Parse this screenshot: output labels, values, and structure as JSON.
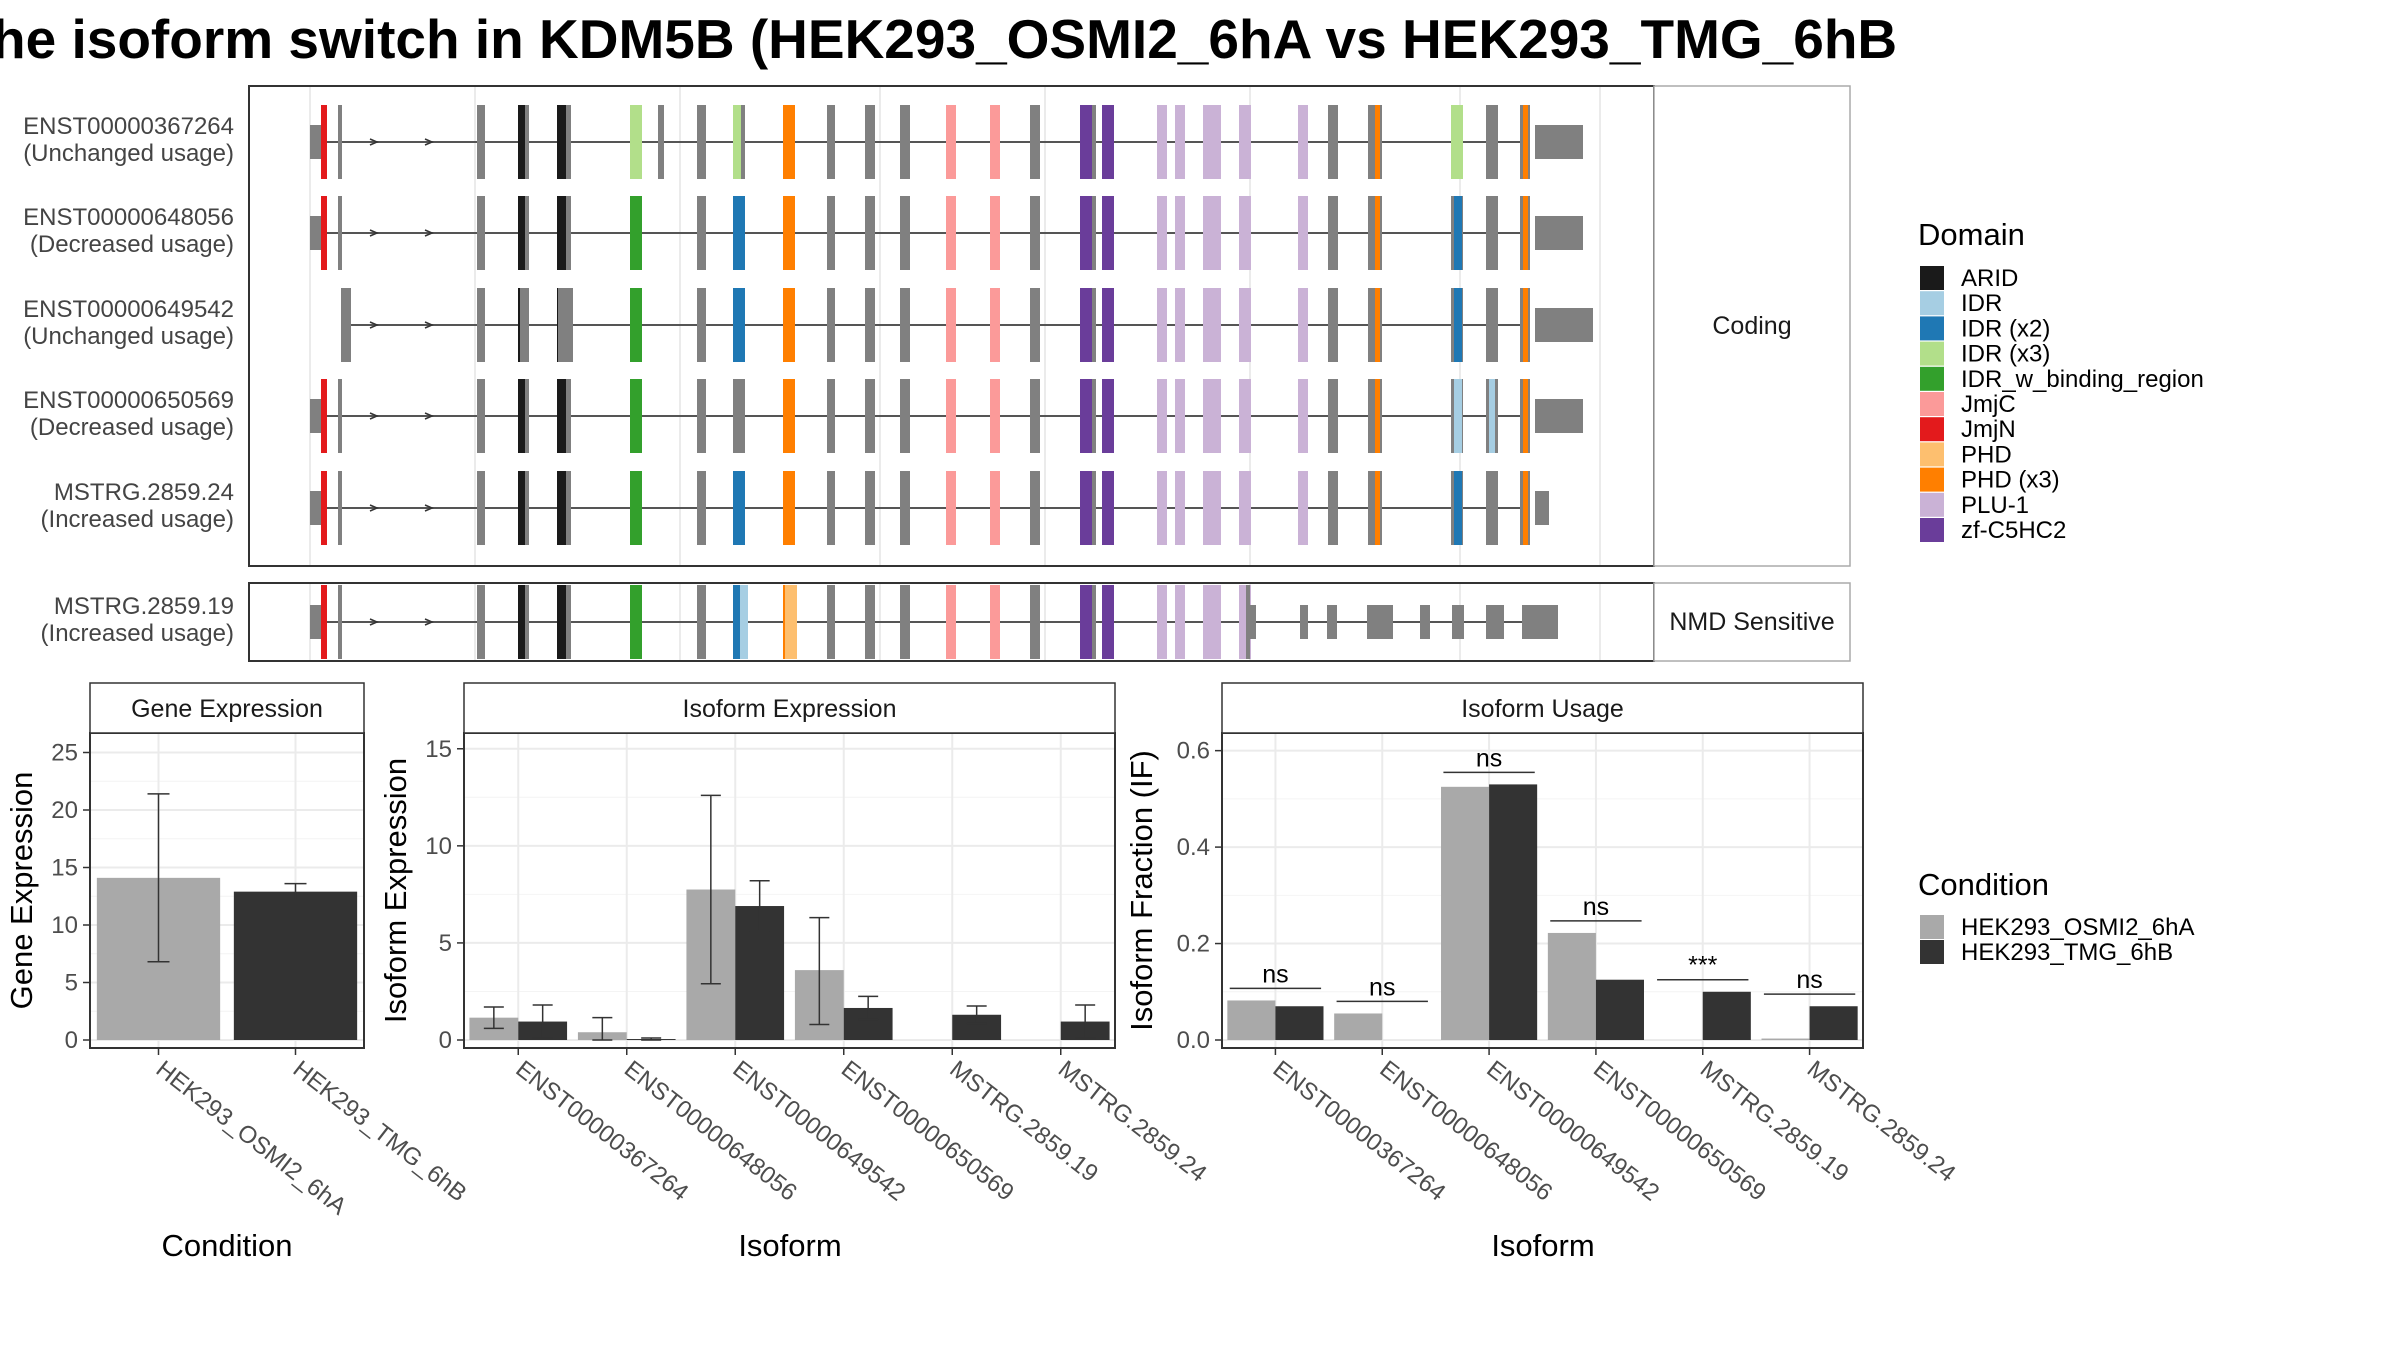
{
  "title": "he isoform switch in KDM5B (HEK293_OSMI2_6hA vs HEK293_TMG_6hB",
  "colors": {
    "ARID": "#1a1a1a",
    "IDR": "#a6cee3",
    "IDR (x2)": "#1f78b4",
    "IDR (x3)": "#b2df8a",
    "IDR_w_binding_region": "#33a02c",
    "JmjC": "#fb9a99",
    "JmjN": "#e31a1c",
    "PHD": "#fdbf6f",
    "PHD (x3)": "#ff7f00",
    "PLU-1": "#cab2d6",
    "zf-C5HC2": "#6a3d9a",
    "none": "#808080",
    "cond1": "#a9a9a9",
    "cond2": "#333333"
  },
  "transcripts": {
    "coding_strip": "Coding",
    "nmd_strip": "NMD Sensitive",
    "coding": [
      {
        "id": "ENST00000367264",
        "usage": "(Unchanged usage)"
      },
      {
        "id": "ENST00000648056",
        "usage": "(Decreased usage)"
      },
      {
        "id": "ENST00000649542",
        "usage": "(Unchanged usage)"
      },
      {
        "id": "ENST00000650569",
        "usage": "(Decreased usage)"
      },
      {
        "id": "MSTRG.2859.24",
        "usage": "(Increased usage)"
      }
    ],
    "nmd": [
      {
        "id": "MSTRG.2859.19",
        "usage": "(Increased usage)"
      }
    ]
  },
  "legend": {
    "domain_title": "Domain",
    "domains": [
      "ARID",
      "IDR",
      "IDR (x2)",
      "IDR (x3)",
      "IDR_w_binding_region",
      "JmjC",
      "JmjN",
      "PHD",
      "PHD (x3)",
      "PLU-1",
      "zf-C5HC2"
    ],
    "condition_title": "Condition",
    "conditions": [
      "HEK293_OSMI2_6hA",
      "HEK293_TMG_6hB"
    ]
  },
  "chart_data": [
    {
      "type": "bar",
      "title": "Gene Expression",
      "xlabel": "Condition",
      "ylabel": "Gene Expression",
      "ylim": [
        0,
        26
      ],
      "yticks": [
        0,
        5,
        10,
        15,
        20,
        25
      ],
      "categories": [
        "HEK293_OSMI2_6hA",
        "HEK293_TMG_6hB"
      ],
      "values": [
        14.1,
        12.9
      ],
      "error_low": [
        6.8,
        12.2
      ],
      "error_high": [
        21.4,
        13.6
      ]
    },
    {
      "type": "bar",
      "title": "Isoform Expression",
      "xlabel": "Isoform",
      "ylabel": "Isoform Expression",
      "ylim": [
        0,
        15.4
      ],
      "yticks": [
        0,
        5,
        10,
        15
      ],
      "categories": [
        "ENST00000367264",
        "ENST00000648056",
        "ENST00000649542",
        "ENST00000650569",
        "MSTRG.2859.19",
        "MSTRG.2859.24"
      ],
      "series": [
        {
          "name": "HEK293_OSMI2_6hA",
          "values": [
            1.15,
            0.4,
            7.75,
            3.6,
            0.0,
            0.0
          ],
          "error_low": [
            0.6,
            0.0,
            2.9,
            0.8,
            0.0,
            0.0
          ],
          "error_high": [
            1.7,
            1.15,
            12.6,
            6.3,
            0.0,
            0.0
          ]
        },
        {
          "name": "HEK293_TMG_6hB",
          "values": [
            0.95,
            0.05,
            6.9,
            1.65,
            1.3,
            0.95
          ],
          "error_low": [
            0.1,
            0.0,
            5.6,
            1.05,
            0.85,
            0.1
          ],
          "error_high": [
            1.8,
            0.1,
            8.2,
            2.25,
            1.75,
            1.8
          ]
        }
      ]
    },
    {
      "type": "bar",
      "title": "Isoform Usage",
      "xlabel": "Isoform",
      "ylabel": "Isoform Fraction (IF)",
      "ylim": [
        0,
        0.62
      ],
      "yticks": [
        0.0,
        0.2,
        0.4,
        0.6
      ],
      "ytick_labels": [
        "0.0",
        "0.2",
        "0.4",
        "0.6"
      ],
      "categories": [
        "ENST00000367264",
        "ENST00000648056",
        "ENST00000649542",
        "ENST00000650569",
        "MSTRG.2859.19",
        "MSTRG.2859.24"
      ],
      "series": [
        {
          "name": "HEK293_OSMI2_6hA",
          "values": [
            0.082,
            0.055,
            0.525,
            0.222,
            0.0,
            0.003
          ]
        },
        {
          "name": "HEK293_TMG_6hB",
          "values": [
            0.07,
            0.0,
            0.53,
            0.125,
            0.1,
            0.07
          ]
        }
      ],
      "significance": [
        "ns",
        "ns",
        "ns",
        "ns",
        "***",
        "ns"
      ],
      "significance_y": [
        0.107,
        0.08,
        0.555,
        0.247,
        0.125,
        0.095
      ]
    }
  ]
}
